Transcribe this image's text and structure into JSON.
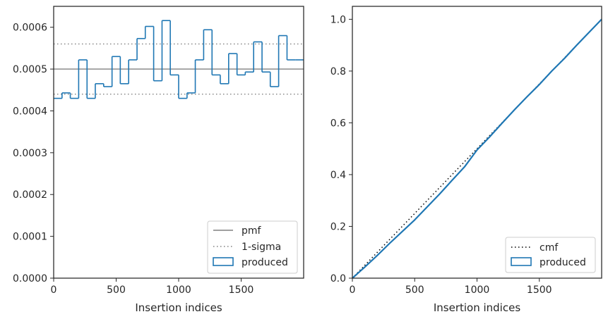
{
  "chart_data": [
    {
      "type": "step",
      "xlabel": "Insertion indices",
      "ylabel": "",
      "xlim": [
        0,
        2000
      ],
      "ylim": [
        0,
        0.00065
      ],
      "xticks": [
        0,
        500,
        1000,
        1500
      ],
      "xtick_labels": [
        "0",
        "500",
        "1000",
        "1500"
      ],
      "yticks": [
        0,
        0.0001,
        0.0002,
        0.0003,
        0.0004,
        0.0005,
        0.0006
      ],
      "ytick_labels": [
        "0.0000",
        "0.0001",
        "0.0002",
        "0.0003",
        "0.0004",
        "0.0005",
        "0.0006"
      ],
      "grid": false,
      "legend_position": "bottom-right",
      "reference_lines": [
        {
          "name": "pmf",
          "y": 0.0005,
          "style": "solid",
          "color": "#808080"
        },
        {
          "name": "1-sigma",
          "y": 0.00056,
          "style": "dotted",
          "color": "#808080"
        },
        {
          "name": "1-sigma",
          "y": 0.00044,
          "style": "dotted",
          "color": "#808080"
        }
      ],
      "legend": [
        "pmf",
        "1-sigma",
        "produced"
      ],
      "series": [
        {
          "name": "produced",
          "color": "#1f77b4",
          "bin_edges": [
            0,
            67,
            133,
            200,
            267,
            333,
            400,
            467,
            533,
            600,
            667,
            733,
            800,
            867,
            933,
            1000,
            1067,
            1133,
            1200,
            1267,
            1333,
            1400,
            1467,
            1533,
            1600,
            1667,
            1733,
            1800,
            1867,
            1933,
            2000
          ],
          "values": [
            0.00043,
            0.000443,
            0.00043,
            0.000522,
            0.00043,
            0.000465,
            0.000458,
            0.00053,
            0.000465,
            0.000522,
            0.000573,
            0.000602,
            0.000472,
            0.000616,
            0.000486,
            0.00043,
            0.000443,
            0.000522,
            0.000594,
            0.000486,
            0.000465,
            0.000537,
            0.000486,
            0.000493,
            0.000565,
            0.000493,
            0.000458,
            0.00058,
            0.000522,
            0.000522
          ]
        }
      ]
    },
    {
      "type": "line",
      "xlabel": "Insertion indices",
      "ylabel": "",
      "xlim": [
        0,
        2000
      ],
      "ylim": [
        0,
        1.05
      ],
      "xticks": [
        0,
        500,
        1000,
        1500
      ],
      "xtick_labels": [
        "0",
        "500",
        "1000",
        "1500"
      ],
      "yticks": [
        0,
        0.2,
        0.4,
        0.6,
        0.8,
        1.0
      ],
      "ytick_labels": [
        "0.0",
        "0.2",
        "0.4",
        "0.6",
        "0.8",
        "1.0"
      ],
      "grid": false,
      "legend_position": "bottom-right",
      "legend": [
        "cmf",
        "produced"
      ],
      "series": [
        {
          "name": "cmf",
          "style": "dotted",
          "color": "#000000",
          "x": [
            0,
            2000
          ],
          "y": [
            0,
            1.0
          ]
        },
        {
          "name": "produced",
          "style": "step",
          "color": "#1f77b4",
          "x": [
            0,
            100,
            200,
            300,
            400,
            500,
            600,
            700,
            800,
            900,
            1000,
            1100,
            1200,
            1300,
            1400,
            1500,
            1600,
            1700,
            1800,
            1900,
            2000
          ],
          "y": [
            0,
            0.043,
            0.088,
            0.135,
            0.18,
            0.225,
            0.275,
            0.325,
            0.378,
            0.43,
            0.495,
            0.545,
            0.598,
            0.65,
            0.7,
            0.748,
            0.8,
            0.848,
            0.9,
            0.95,
            1.0
          ]
        }
      ]
    }
  ]
}
